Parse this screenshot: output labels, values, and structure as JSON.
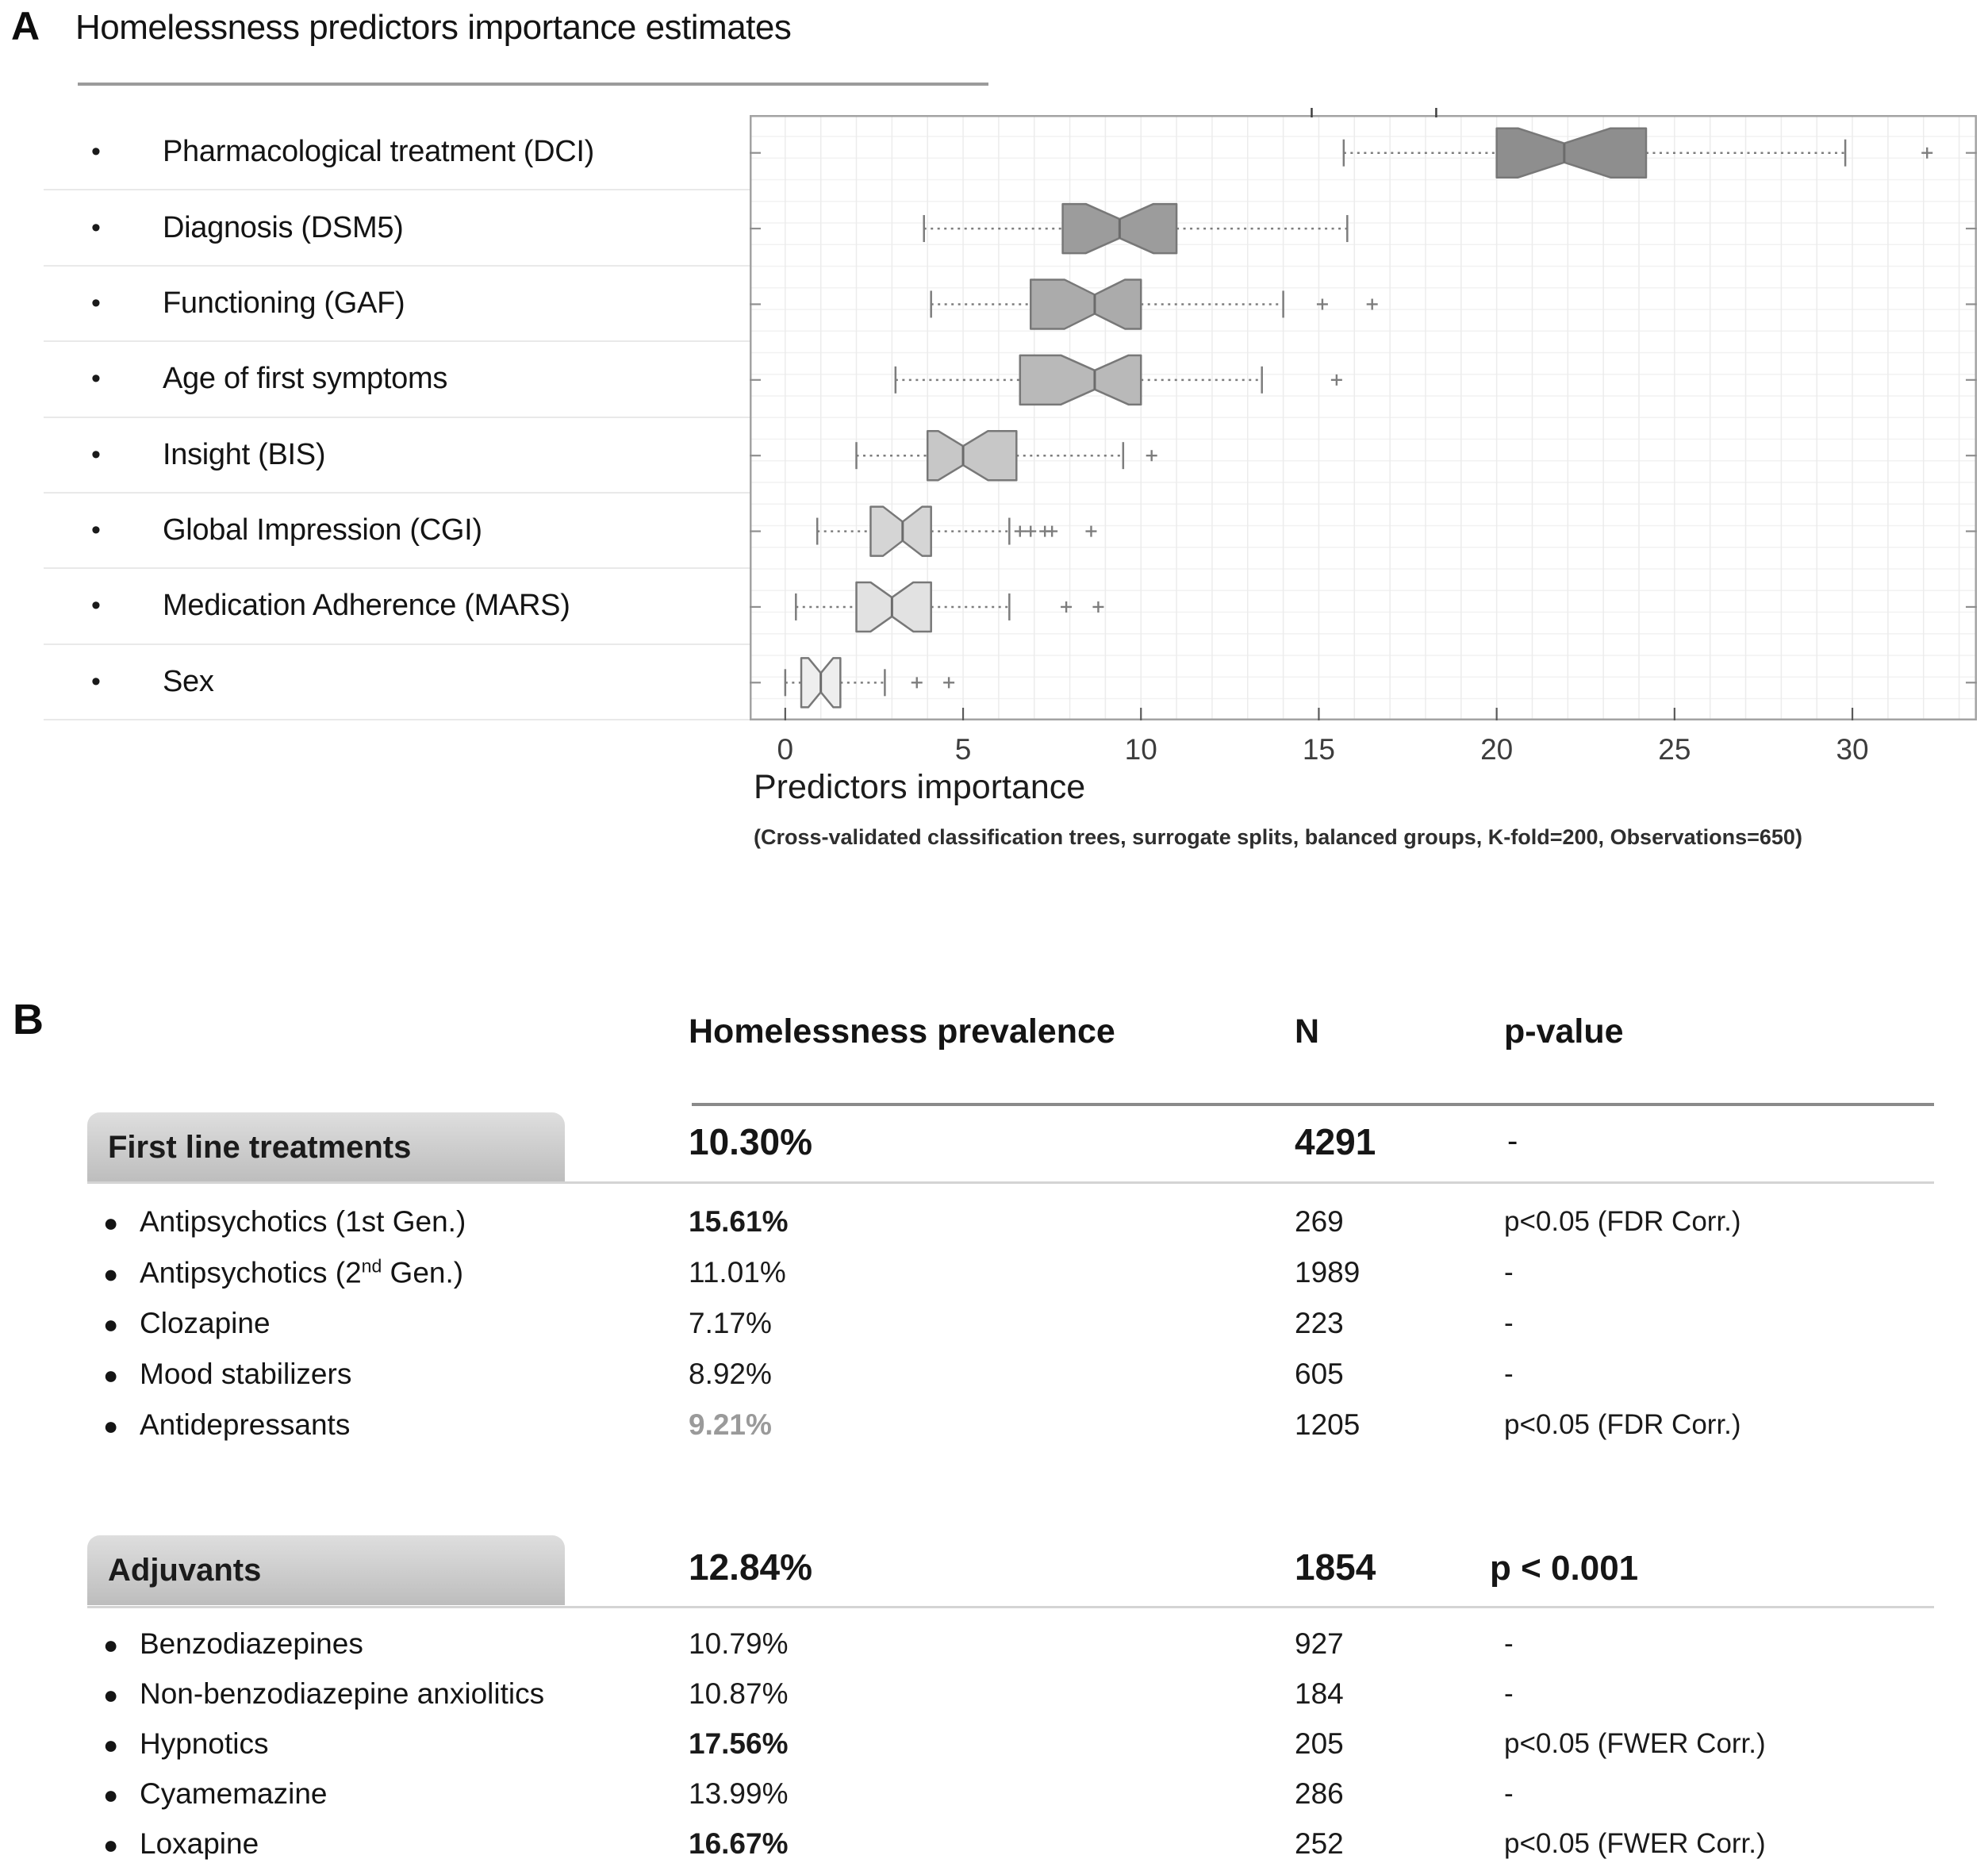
{
  "panel_a": {
    "panel_letter": "A",
    "title": "Homelessness predictors importance estimates",
    "xlabel": "Predictors importance",
    "subtitle": "(Cross-validated classification trees, surrogate splits, balanced groups, K-fold=200, Observations=650)",
    "chart_data": {
      "type": "boxplot",
      "orientation": "horizontal",
      "xlabel": "Predictors importance",
      "xlim": [
        -1,
        33.5
      ],
      "xticks": [
        0,
        5,
        10,
        15,
        20,
        25,
        30
      ],
      "grid": "light minor grid, vertical line every 1 unit",
      "notched": true,
      "whisker_style": "dotted",
      "top_edge_marks": [
        14.8,
        18.3
      ],
      "rows": [
        {
          "label": "Pharmacological treatment (DCI)",
          "whisker_low": 15.7,
          "q1": 20.0,
          "median": 21.9,
          "q3": 24.2,
          "whisker_high": 29.8,
          "outliers": [
            32.1
          ],
          "notch_halfwidth": 1.3,
          "fill": "#8e8e8e"
        },
        {
          "label": "Diagnosis (DSM5)",
          "whisker_low": 3.9,
          "q1": 7.8,
          "median": 9.4,
          "q3": 11.0,
          "whisker_high": 15.8,
          "outliers": [],
          "notch_halfwidth": 0.95,
          "fill": "#9c9c9c"
        },
        {
          "label": "Functioning (GAF)",
          "whisker_low": 4.1,
          "q1": 6.9,
          "median": 8.7,
          "q3": 10.0,
          "whisker_high": 14.0,
          "outliers": [
            15.1,
            16.5
          ],
          "notch_halfwidth": 0.85,
          "fill": "#ababab"
        },
        {
          "label": "Age of first symptoms",
          "whisker_low": 3.1,
          "q1": 6.6,
          "median": 8.7,
          "q3": 10.0,
          "whisker_high": 13.4,
          "outliers": [
            15.5
          ],
          "notch_halfwidth": 0.95,
          "fill": "#b9b9b9"
        },
        {
          "label": "Insight (BIS)",
          "whisker_low": 2.0,
          "q1": 4.0,
          "median": 5.0,
          "q3": 6.5,
          "whisker_high": 9.5,
          "outliers": [
            10.3
          ],
          "notch_halfwidth": 0.7,
          "fill": "#c7c7c7"
        },
        {
          "label": "Global Impression (CGI)",
          "whisker_low": 0.9,
          "q1": 2.4,
          "median": 3.3,
          "q3": 4.1,
          "whisker_high": 6.3,
          "outliers": [
            6.6,
            6.9,
            7.3,
            7.5,
            8.6
          ],
          "notch_halfwidth": 0.55,
          "fill": "#d5d5d5"
        },
        {
          "label": "Medication Adherence (MARS)",
          "whisker_low": 0.3,
          "q1": 2.0,
          "median": 3.0,
          "q3": 4.1,
          "whisker_high": 6.3,
          "outliers": [
            7.9,
            8.8
          ],
          "notch_halfwidth": 0.6,
          "fill": "#e2e2e2"
        },
        {
          "label": "Sex",
          "whisker_low": 0.0,
          "q1": 0.45,
          "median": 1.0,
          "q3": 1.55,
          "whisker_high": 2.8,
          "outliers": [
            3.7,
            4.6
          ],
          "notch_halfwidth": 0.35,
          "fill": "#eeeeee"
        }
      ]
    }
  },
  "panel_b": {
    "panel_letter": "B",
    "columns": {
      "prevalence": "Homelessness prevalence",
      "n": "N",
      "p": "p-value"
    },
    "sections": [
      {
        "header": "First line treatments",
        "prevalence": "10.30%",
        "n": "4291",
        "p": "-",
        "p_bold": false,
        "rows": [
          {
            "label": "Antipsychotics (1st Gen.)",
            "prevalence": "15.61%",
            "bold": true,
            "muted": false,
            "n": "269",
            "p": "p<0.05 (FDR Corr.)"
          },
          {
            "label": [
              {
                "t": "Antipsychotics (2"
              },
              {
                "t": "nd",
                "sup": true
              },
              {
                "t": " Gen.)"
              }
            ],
            "prevalence": "11.01%",
            "bold": false,
            "muted": false,
            "n": "1989",
            "p": "-"
          },
          {
            "label": "Clozapine",
            "prevalence": "7.17%",
            "bold": false,
            "muted": false,
            "n": "223",
            "p": "-"
          },
          {
            "label": "Mood stabilizers",
            "prevalence": "8.92%",
            "bold": false,
            "muted": false,
            "n": "605",
            "p": "-"
          },
          {
            "label": "Antidepressants",
            "prevalence": "9.21%",
            "bold": true,
            "muted": true,
            "n": "1205",
            "p": "p<0.05 (FDR Corr.)"
          }
        ]
      },
      {
        "header": "Adjuvants",
        "prevalence": "12.84%",
        "n": "1854",
        "p": "p < 0.001",
        "p_bold": true,
        "rows": [
          {
            "label": "Benzodiazepines",
            "prevalence": "10.79%",
            "bold": false,
            "muted": false,
            "n": "927",
            "p": "-"
          },
          {
            "label": "Non-benzodiazepine anxiolitics",
            "prevalence": "10.87%",
            "bold": false,
            "muted": false,
            "n": "184",
            "p": "-"
          },
          {
            "label": "Hypnotics",
            "prevalence": "17.56%",
            "bold": true,
            "muted": false,
            "n": "205",
            "p": "p<0.05 (FWER Corr.)"
          },
          {
            "label": "Cyamemazine",
            "prevalence": "13.99%",
            "bold": false,
            "muted": false,
            "n": "286",
            "p": "-"
          },
          {
            "label": "Loxapine",
            "prevalence": "16.67%",
            "bold": true,
            "muted": false,
            "n": "252",
            "p": "p<0.05 (FWER Corr.)"
          }
        ]
      }
    ]
  }
}
